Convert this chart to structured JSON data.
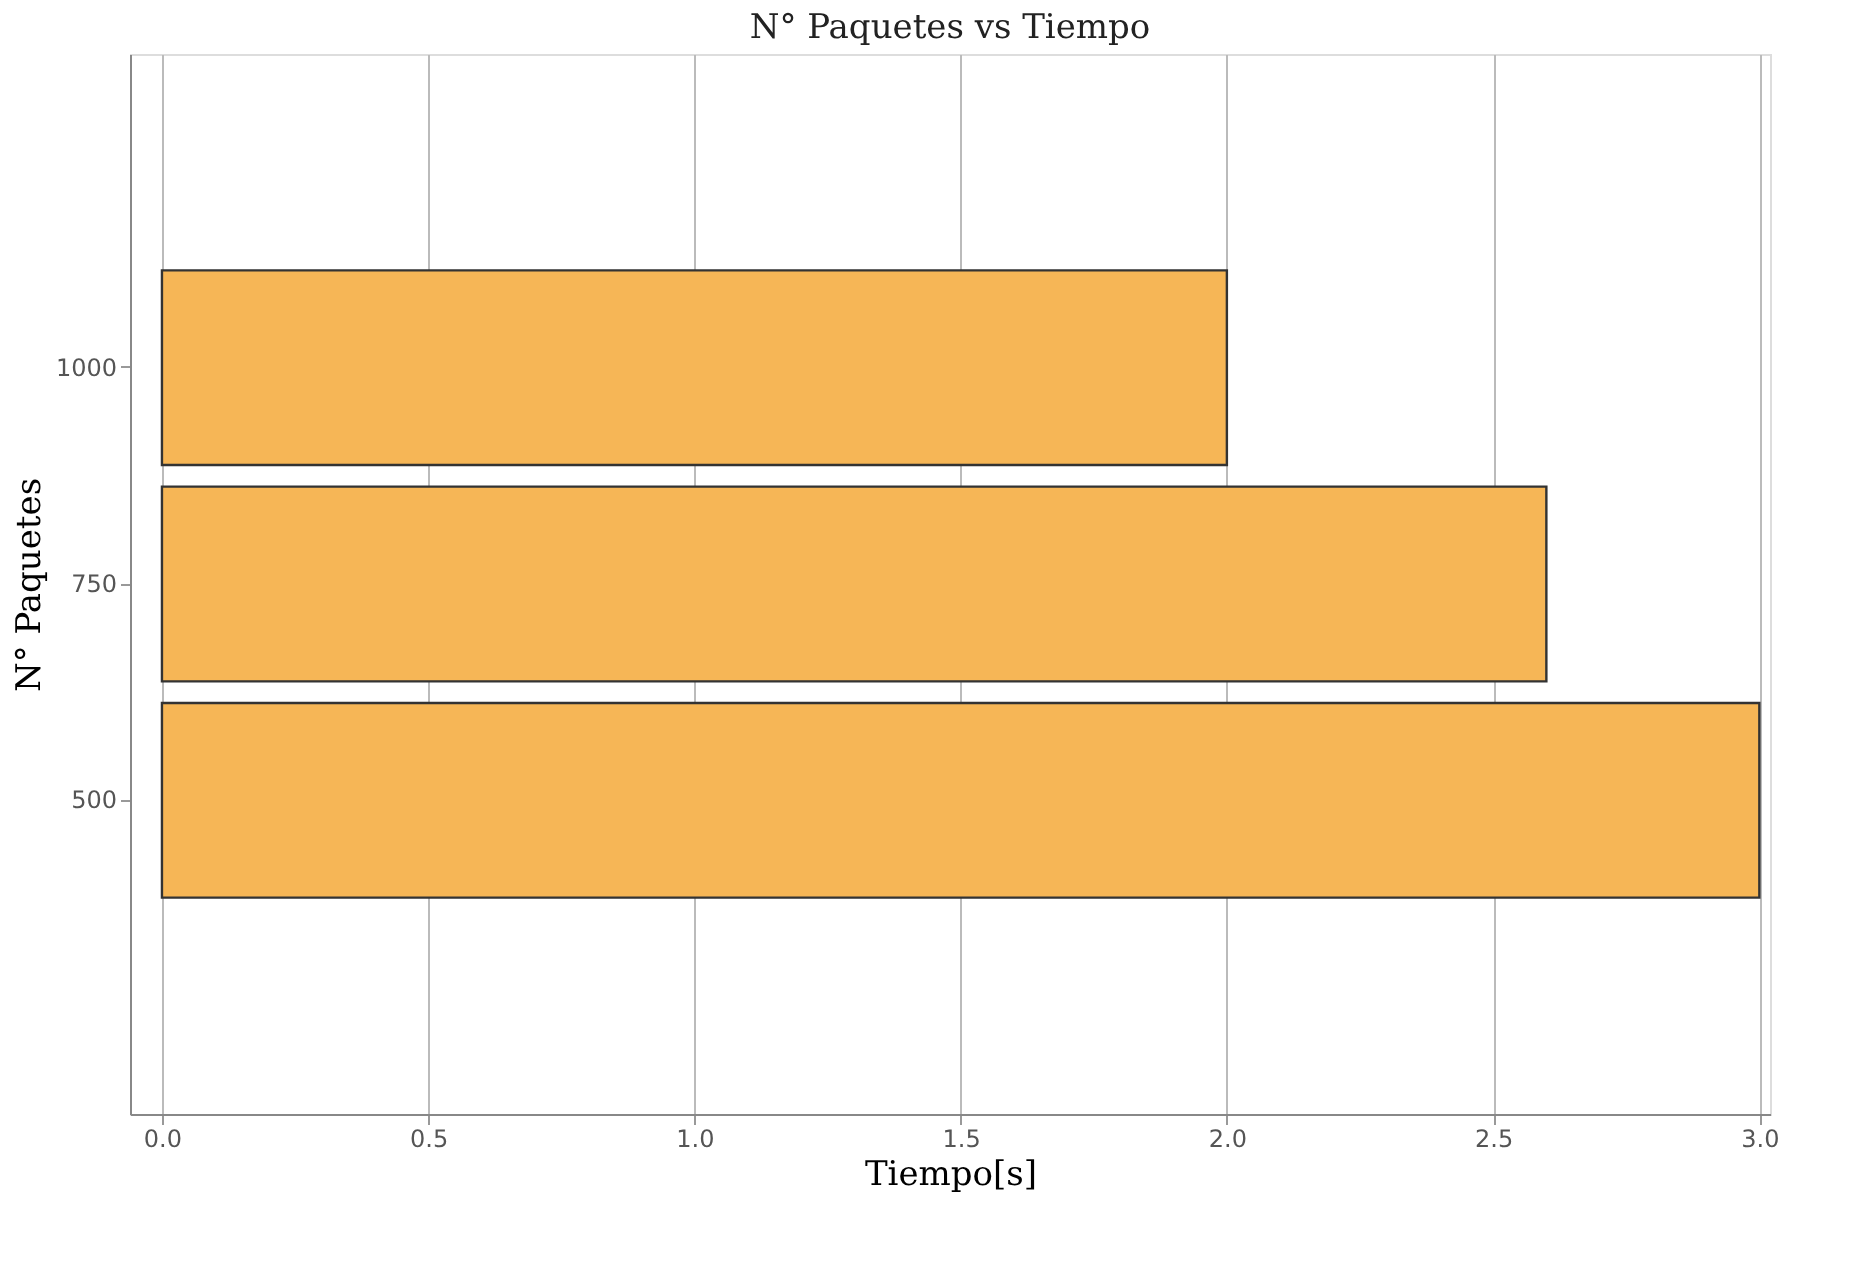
{
  "chart_data": {
    "type": "bar",
    "orientation": "horizontal",
    "title": "N° Paquetes vs Tiempo",
    "xlabel": "Tiempo[s]",
    "ylabel": "N° Paquetes",
    "categories": [
      "1000",
      "750",
      "500"
    ],
    "values": [
      2.0,
      2.6,
      3.0
    ],
    "color": "#f6b656",
    "xlim": [
      -0.06,
      3.02
    ],
    "xticks": [
      {
        "value": 0,
        "label": "0.0"
      },
      {
        "value": 0.5,
        "label": "0.5"
      },
      {
        "value": 1,
        "label": "1.0"
      },
      {
        "value": 1.5,
        "label": "1.5"
      },
      {
        "value": 2,
        "label": "2.0"
      },
      {
        "value": 2.5,
        "label": "2.5"
      },
      {
        "value": 3,
        "label": "3.0"
      }
    ],
    "grid": "x"
  }
}
